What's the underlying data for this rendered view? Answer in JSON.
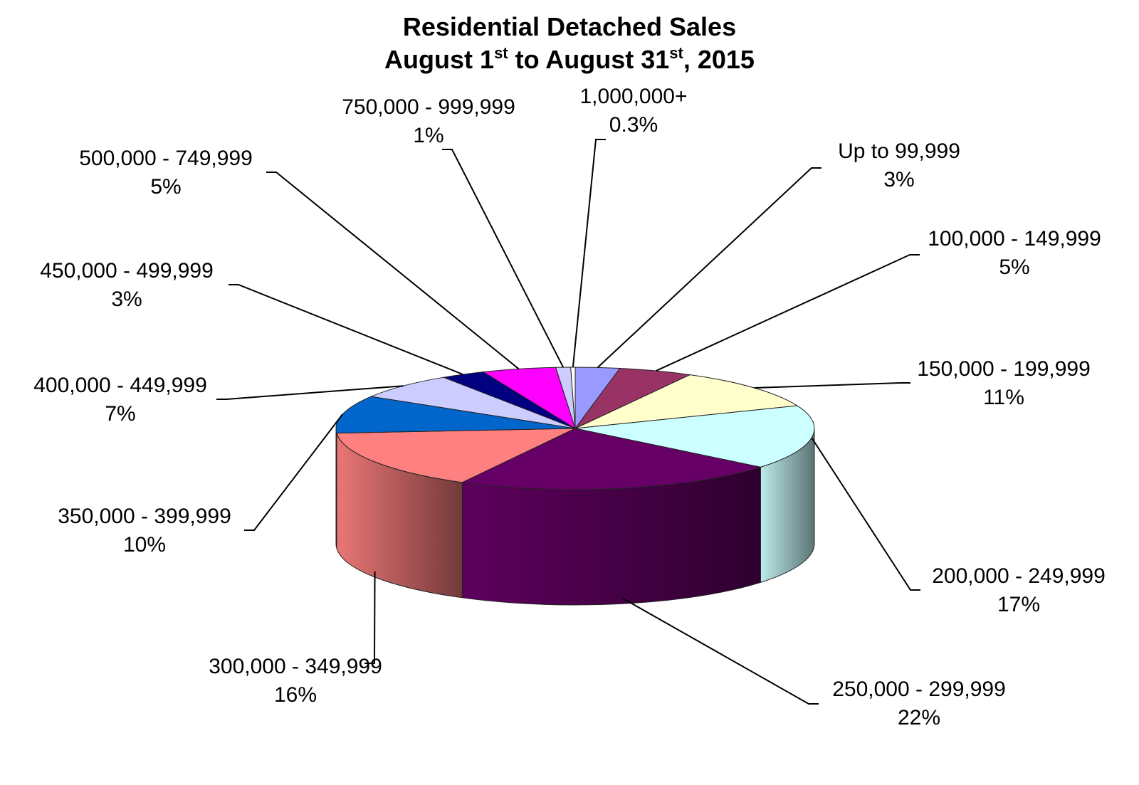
{
  "chart_data": {
    "type": "pie",
    "title_line1": "Residential Detached Sales",
    "title_line2": {
      "month_a": "August 1",
      "sup_a": "st",
      "middle": " to August 31",
      "sup_b": "st",
      "tail": ", 2015"
    },
    "slices": [
      {
        "label": "Up to 99,999",
        "value_label": "3%",
        "value": 3,
        "color": "#9999ff"
      },
      {
        "label": "100,000 - 149,999",
        "value_label": "5%",
        "value": 5,
        "color": "#993366"
      },
      {
        "label": "150,000 - 199,999",
        "value_label": "11%",
        "value": 11,
        "color": "#ffffcc"
      },
      {
        "label": "200,000 - 249,999",
        "value_label": "17%",
        "value": 17,
        "color": "#ccffff"
      },
      {
        "label": "250,000 - 299,999",
        "value_label": "22%",
        "value": 22,
        "color": "#660066"
      },
      {
        "label": "300,000 - 349,999",
        "value_label": "16%",
        "value": 16,
        "color": "#ff8080"
      },
      {
        "label": "350,000 - 399,999",
        "value_label": "10%",
        "value": 10,
        "color": "#0066cc"
      },
      {
        "label": "400,000 - 449,999",
        "value_label": "7%",
        "value": 7,
        "color": "#ccccff"
      },
      {
        "label": "450,000 - 499,999",
        "value_label": "3%",
        "value": 3,
        "color": "#000080"
      },
      {
        "label": "500,000 - 749,999",
        "value_label": "5%",
        "value": 5,
        "color": "#ff00ff"
      },
      {
        "label": "750,000 - 999,999",
        "value_label": "1%",
        "value": 1,
        "color": "#ccccff"
      },
      {
        "label": "1,000,000+",
        "value_label": "0.3%",
        "value": 0.3,
        "color": "#ffffff"
      }
    ]
  }
}
